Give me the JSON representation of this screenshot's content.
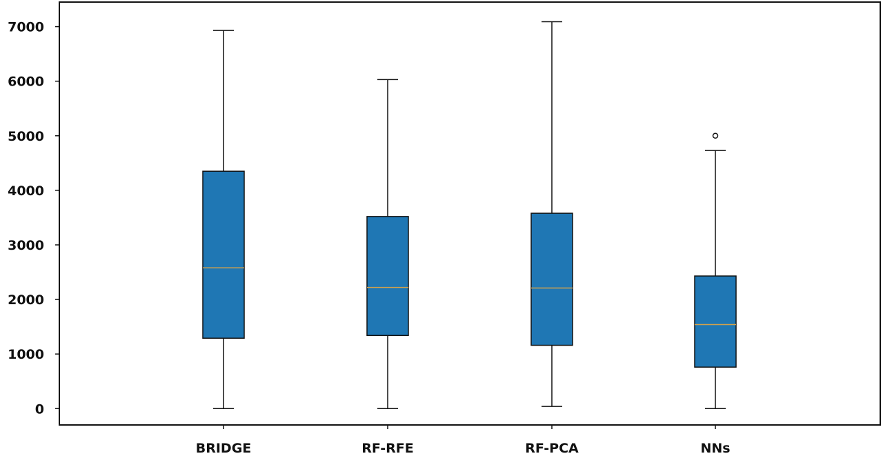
{
  "chart_data": {
    "type": "boxplot",
    "title": "",
    "xlabel": "",
    "ylabel": "",
    "ylim": [
      -300,
      7450
    ],
    "yticks": [
      0,
      1000,
      2000,
      3000,
      4000,
      5000,
      6000,
      7000
    ],
    "ytick_labels": [
      "0",
      "1000",
      "2000",
      "3000",
      "4000",
      "5000",
      "6000",
      "7000"
    ],
    "grid": false,
    "box_color": "#1f77b4",
    "median_color": "#d4a24a",
    "categories": [
      "BRIDGE",
      "RF-RFE",
      "RF-PCA",
      "NNs"
    ],
    "boxes": [
      {
        "whisker_low": 0,
        "q1": 1290,
        "median": 2580,
        "q3": 4350,
        "whisker_high": 6930,
        "outliers": []
      },
      {
        "whisker_low": 0,
        "q1": 1340,
        "median": 2220,
        "q3": 3520,
        "whisker_high": 6030,
        "outliers": []
      },
      {
        "whisker_low": 40,
        "q1": 1160,
        "median": 2210,
        "q3": 3580,
        "whisker_high": 7090,
        "outliers": []
      },
      {
        "whisker_low": 0,
        "q1": 760,
        "median": 1540,
        "q3": 2430,
        "whisker_high": 4730,
        "outliers": [
          5000
        ]
      }
    ]
  }
}
